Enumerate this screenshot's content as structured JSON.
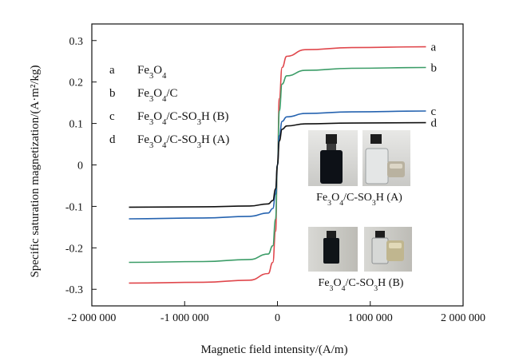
{
  "chart_data": {
    "type": "line",
    "xlabel": "Magnetic field intensity/(A/m)",
    "ylabel": "Specific saturation magnetization/(A·m²/kg)",
    "xlim": [
      -2000000,
      2000000
    ],
    "ylim": [
      -0.34,
      0.34
    ],
    "x_ticks": [
      -2000000,
      -1000000,
      0,
      1000000,
      2000000
    ],
    "x_tick_labels": [
      "-2 000 000",
      "-1 000 000",
      "0",
      "1 000 000",
      "2 000 000"
    ],
    "y_ticks": [
      -0.3,
      -0.2,
      -0.1,
      0,
      0.1,
      0.2,
      0.3
    ],
    "y_tick_labels": [
      "-0.3",
      "-0.2",
      "-0.1",
      "0",
      "0.1",
      "0.2",
      "0.3"
    ],
    "grid": false,
    "legend_position": "top-left",
    "series": [
      {
        "letter": "a",
        "name_base": "Fe",
        "name_parts": [
          "Fe",
          "3",
          "O",
          "4",
          ""
        ],
        "color": "#e0474c",
        "x": [
          -1600000,
          -800000,
          -300000,
          -100000,
          -50000,
          -20000,
          0,
          20000,
          50000,
          100000,
          300000,
          800000,
          1600000
        ],
        "y": [
          -0.285,
          -0.283,
          -0.278,
          -0.262,
          -0.235,
          -0.16,
          0,
          0.16,
          0.235,
          0.262,
          0.278,
          0.283,
          0.285
        ]
      },
      {
        "letter": "b",
        "name_parts": [
          "Fe",
          "3",
          "O",
          "4",
          "/C"
        ],
        "color": "#3c9d68",
        "x": [
          -1600000,
          -800000,
          -300000,
          -100000,
          -50000,
          -20000,
          0,
          20000,
          50000,
          100000,
          300000,
          800000,
          1600000
        ],
        "y": [
          -0.235,
          -0.233,
          -0.228,
          -0.215,
          -0.195,
          -0.13,
          0,
          0.13,
          0.195,
          0.215,
          0.228,
          0.233,
          0.235
        ]
      },
      {
        "letter": "c",
        "name_parts": [
          "Fe",
          "3",
          "O",
          "4",
          "/C-SO",
          "3",
          "H (B)"
        ],
        "color": "#2563b0",
        "x": [
          -1600000,
          -800000,
          -300000,
          -100000,
          -50000,
          -20000,
          0,
          20000,
          50000,
          100000,
          300000,
          800000,
          1600000
        ],
        "y": [
          -0.13,
          -0.128,
          -0.124,
          -0.116,
          -0.105,
          -0.07,
          0,
          0.07,
          0.105,
          0.116,
          0.124,
          0.128,
          0.13
        ]
      },
      {
        "letter": "d",
        "name_parts": [
          "Fe",
          "3",
          "O",
          "4",
          "/C-SO",
          "3",
          "H (A)"
        ],
        "color": "#111111",
        "x": [
          -1600000,
          -800000,
          -300000,
          -100000,
          -50000,
          -20000,
          0,
          20000,
          50000,
          100000,
          300000,
          800000,
          1600000
        ],
        "y": [
          -0.102,
          -0.101,
          -0.099,
          -0.094,
          -0.086,
          -0.058,
          0,
          0.058,
          0.086,
          0.094,
          0.099,
          0.101,
          0.102
        ]
      }
    ],
    "photos": [
      {
        "caption_parts": [
          "Fe",
          "3",
          "O",
          "4",
          "/C-SO",
          "3",
          "H (A)"
        ]
      },
      {
        "caption_parts": [
          "Fe",
          "3",
          "O",
          "4",
          "/C-SO",
          "3",
          "H (B)"
        ]
      }
    ]
  }
}
